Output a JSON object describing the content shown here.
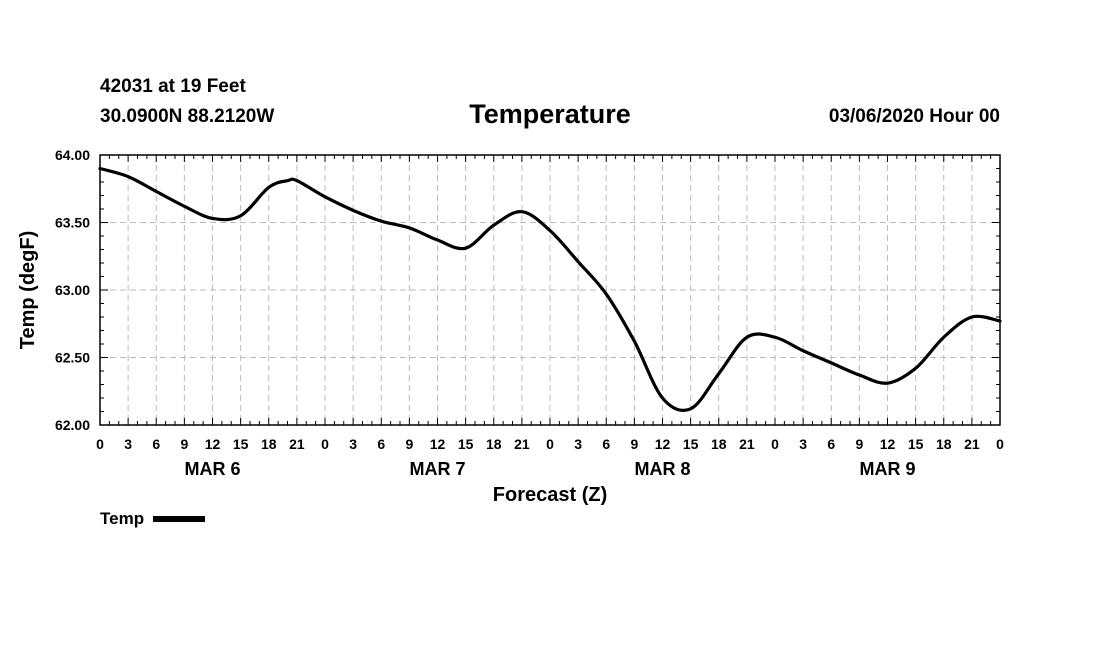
{
  "header": {
    "station": "42031 at 19 Feet",
    "coords": "30.0900N 88.2120W",
    "title": "Temperature",
    "datetime": "03/06/2020 Hour 00"
  },
  "legend": {
    "label": "Temp"
  },
  "chart_data": {
    "type": "line",
    "title": "Temperature",
    "xlabel": "Forecast (Z)",
    "ylabel": "Temp (degF)",
    "ylim": [
      62.0,
      64.0
    ],
    "xlim": [
      0,
      96
    ],
    "grid": true,
    "y_ticks": [
      {
        "value": 62.0,
        "label": "62.00"
      },
      {
        "value": 62.5,
        "label": "62.50"
      },
      {
        "value": 63.0,
        "label": "63.00"
      },
      {
        "value": 63.5,
        "label": "63.50"
      },
      {
        "value": 64.0,
        "label": "64.00"
      }
    ],
    "x_ticks": [
      {
        "hour": 0,
        "label": "0"
      },
      {
        "hour": 3,
        "label": "3"
      },
      {
        "hour": 6,
        "label": "6"
      },
      {
        "hour": 9,
        "label": "9"
      },
      {
        "hour": 12,
        "label": "12"
      },
      {
        "hour": 15,
        "label": "15"
      },
      {
        "hour": 18,
        "label": "18"
      },
      {
        "hour": 21,
        "label": "21"
      },
      {
        "hour": 24,
        "label": "0"
      },
      {
        "hour": 27,
        "label": "3"
      },
      {
        "hour": 30,
        "label": "6"
      },
      {
        "hour": 33,
        "label": "9"
      },
      {
        "hour": 36,
        "label": "12"
      },
      {
        "hour": 39,
        "label": "15"
      },
      {
        "hour": 42,
        "label": "18"
      },
      {
        "hour": 45,
        "label": "21"
      },
      {
        "hour": 48,
        "label": "0"
      },
      {
        "hour": 51,
        "label": "3"
      },
      {
        "hour": 54,
        "label": "6"
      },
      {
        "hour": 57,
        "label": "9"
      },
      {
        "hour": 60,
        "label": "12"
      },
      {
        "hour": 63,
        "label": "15"
      },
      {
        "hour": 66,
        "label": "18"
      },
      {
        "hour": 69,
        "label": "21"
      },
      {
        "hour": 72,
        "label": "0"
      },
      {
        "hour": 75,
        "label": "3"
      },
      {
        "hour": 78,
        "label": "6"
      },
      {
        "hour": 81,
        "label": "9"
      },
      {
        "hour": 84,
        "label": "12"
      },
      {
        "hour": 87,
        "label": "15"
      },
      {
        "hour": 90,
        "label": "18"
      },
      {
        "hour": 93,
        "label": "21"
      },
      {
        "hour": 96,
        "label": "0"
      }
    ],
    "day_labels": [
      {
        "hour": 12,
        "label": "MAR 6"
      },
      {
        "hour": 36,
        "label": "MAR 7"
      },
      {
        "hour": 60,
        "label": "MAR 8"
      },
      {
        "hour": 84,
        "label": "MAR 9"
      }
    ],
    "series": [
      {
        "name": "Temp",
        "x": [
          0,
          3,
          6,
          9,
          12,
          15,
          18,
          20,
          21,
          24,
          27,
          30,
          33,
          36,
          39,
          42,
          45,
          48,
          51,
          54,
          57,
          60,
          63,
          66,
          69,
          72,
          75,
          78,
          81,
          84,
          87,
          90,
          93,
          96
        ],
        "y": [
          63.9,
          63.84,
          63.73,
          63.62,
          63.53,
          63.55,
          63.76,
          63.81,
          63.81,
          63.69,
          63.59,
          63.51,
          63.46,
          63.37,
          63.31,
          63.48,
          63.58,
          63.44,
          63.21,
          62.97,
          62.62,
          62.2,
          62.12,
          62.38,
          62.65,
          62.65,
          62.55,
          62.46,
          62.37,
          62.31,
          62.42,
          62.65,
          62.8,
          62.77
        ]
      }
    ]
  }
}
